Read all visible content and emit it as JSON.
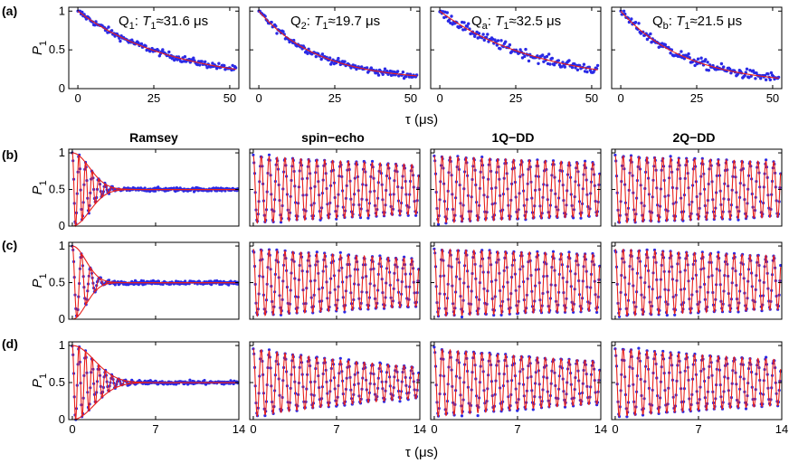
{
  "figure": {
    "row_labels": [
      "(a)",
      "(b)",
      "(c)",
      "(d)"
    ],
    "column_titles": [
      "Ramsey",
      "spin−echo",
      "1Q−DD",
      "2Q−DD"
    ],
    "ylabel_main": "P",
    "ylabel_sub": "1",
    "xlabel_top": "τ (μs)",
    "xlabel_bottom": "τ (μs)",
    "colors": {
      "data": "#2a2ae6",
      "fit": "#e8201a",
      "axis": "#000000"
    }
  },
  "chart_data": [
    {
      "type": "scatter",
      "row": "(a)",
      "qubit_main": "Q",
      "qubit_sub": "1",
      "t1_main": "T",
      "t1_sub": "1",
      "t1_value": "≈31.6 μs",
      "T1_us": 31.6,
      "xlim": [
        -3,
        53
      ],
      "ylim": [
        0,
        1.05
      ],
      "xticks": [
        0,
        25,
        50
      ],
      "xtick_labels": [
        "0",
        "25",
        "50"
      ],
      "yticks": [
        0,
        0.5,
        1
      ],
      "ytick_labels": [
        "0",
        "0.5",
        "1"
      ],
      "series": [
        {
          "fit": {
            "model": "exp",
            "amp": 0.93,
            "tau": 31.6,
            "offset": 0.07
          }
        }
      ]
    },
    {
      "type": "scatter",
      "row": "(a)",
      "qubit_main": "Q",
      "qubit_sub": "2",
      "t1_main": "T",
      "t1_sub": "1",
      "t1_value": "≈19.7 μs",
      "T1_us": 19.7,
      "xlim": [
        -3,
        53
      ],
      "ylim": [
        0,
        1.05
      ],
      "xticks": [
        0,
        25,
        50
      ],
      "xtick_labels": [
        "0",
        "25",
        "50"
      ],
      "yticks": [
        0,
        0.5,
        1
      ],
      "ytick_labels": [
        "",
        "",
        ""
      ],
      "series": [
        {
          "fit": {
            "model": "exp",
            "amp": 0.9,
            "tau": 19.7,
            "offset": 0.1
          }
        }
      ]
    },
    {
      "type": "scatter",
      "row": "(a)",
      "qubit_main": "Q",
      "qubit_sub": "a",
      "t1_main": "T",
      "t1_sub": "1",
      "t1_value": "≈32.5 μs",
      "T1_us": 32.5,
      "xlim": [
        -3,
        53
      ],
      "ylim": [
        0,
        1.05
      ],
      "xticks": [
        0,
        25,
        50
      ],
      "xtick_labels": [
        "0",
        "25",
        "50"
      ],
      "yticks": [
        0,
        0.5,
        1
      ],
      "ytick_labels": [
        "",
        "",
        ""
      ],
      "series": [
        {
          "fit": {
            "model": "exp",
            "amp": 0.95,
            "tau": 32.5,
            "offset": 0.05
          }
        }
      ]
    },
    {
      "type": "scatter",
      "row": "(a)",
      "qubit_main": "Q",
      "qubit_sub": "b",
      "t1_main": "T",
      "t1_sub": "1",
      "t1_value": "≈21.5 μs",
      "T1_us": 21.5,
      "xlim": [
        -3,
        53
      ],
      "ylim": [
        0,
        1.05
      ],
      "xticks": [
        0,
        25,
        50
      ],
      "xtick_labels": [
        "0",
        "25",
        "50"
      ],
      "yticks": [
        0,
        0.5,
        1
      ],
      "ytick_labels": [
        "",
        "",
        ""
      ],
      "series": [
        {
          "fit": {
            "model": "exp",
            "amp": 0.95,
            "tau": 21.5,
            "offset": 0.05
          }
        }
      ]
    },
    {
      "type": "scatter",
      "row": "(b)",
      "column": "Ramsey",
      "xlim": [
        -0.3,
        14
      ],
      "ylim": [
        0,
        1.05
      ],
      "xticks": [
        0,
        7,
        14
      ],
      "yticks": [
        0,
        0.5,
        1
      ],
      "series": [
        {
          "fit": {
            "model": "damped_cos",
            "freq_MHz": 1.8,
            "decay_us": 2.0,
            "gaussian": true,
            "offset": 0.5,
            "amp": 0.5
          }
        }
      ]
    },
    {
      "type": "scatter",
      "row": "(b)",
      "column": "spin−echo",
      "xlim": [
        -0.3,
        14
      ],
      "ylim": [
        0,
        1.05
      ],
      "xticks": [
        0,
        7,
        14
      ],
      "yticks": [
        0,
        0.5,
        1
      ],
      "series": [
        {
          "fit": {
            "model": "damped_cos",
            "freq_MHz": 1.5,
            "decay_us": 45,
            "gaussian": false,
            "offset": 0.5,
            "amp": 0.46
          }
        }
      ]
    },
    {
      "type": "scatter",
      "row": "(b)",
      "column": "1Q−DD",
      "xlim": [
        -0.3,
        14
      ],
      "ylim": [
        0,
        1.05
      ],
      "xticks": [
        0,
        7,
        14
      ],
      "yticks": [
        0,
        0.5,
        1
      ],
      "series": [
        {
          "fit": {
            "model": "damped_cos",
            "freq_MHz": 1.5,
            "decay_us": 60,
            "gaussian": false,
            "offset": 0.5,
            "amp": 0.46
          }
        }
      ]
    },
    {
      "type": "scatter",
      "row": "(b)",
      "column": "2Q−DD",
      "xlim": [
        -0.3,
        14
      ],
      "ylim": [
        0,
        1.05
      ],
      "xticks": [
        0,
        7,
        14
      ],
      "yticks": [
        0,
        0.5,
        1
      ],
      "series": [
        {
          "fit": {
            "model": "damped_cos",
            "freq_MHz": 1.5,
            "decay_us": 70,
            "gaussian": false,
            "offset": 0.5,
            "amp": 0.46
          }
        }
      ]
    },
    {
      "type": "scatter",
      "row": "(c)",
      "column": "Ramsey",
      "xlim": [
        -0.3,
        14
      ],
      "ylim": [
        0,
        1.05
      ],
      "xticks": [
        0,
        7,
        14
      ],
      "yticks": [
        0,
        0.5,
        1
      ],
      "series": [
        {
          "fit": {
            "model": "damped_cos",
            "freq_MHz": 1.3,
            "decay_us": 1.6,
            "gaussian": true,
            "offset": 0.5,
            "amp": 0.5
          }
        }
      ]
    },
    {
      "type": "scatter",
      "row": "(c)",
      "column": "spin−echo",
      "xlim": [
        -0.3,
        14
      ],
      "ylim": [
        0,
        1.05
      ],
      "xticks": [
        0,
        7,
        14
      ],
      "yticks": [
        0,
        0.5,
        1
      ],
      "series": [
        {
          "fit": {
            "model": "damped_cos",
            "freq_MHz": 1.5,
            "decay_us": 40,
            "gaussian": false,
            "offset": 0.5,
            "amp": 0.46
          }
        }
      ]
    },
    {
      "type": "scatter",
      "row": "(c)",
      "column": "1Q−DD",
      "xlim": [
        -0.3,
        14
      ],
      "ylim": [
        0,
        1.05
      ],
      "xticks": [
        0,
        7,
        14
      ],
      "yticks": [
        0,
        0.5,
        1
      ],
      "series": [
        {
          "fit": {
            "model": "damped_cos",
            "freq_MHz": 1.5,
            "decay_us": 80,
            "gaussian": false,
            "offset": 0.5,
            "amp": 0.46
          }
        }
      ]
    },
    {
      "type": "scatter",
      "row": "(c)",
      "column": "2Q−DD",
      "xlim": [
        -0.3,
        14
      ],
      "ylim": [
        0,
        1.05
      ],
      "xticks": [
        0,
        7,
        14
      ],
      "yticks": [
        0,
        0.5,
        1
      ],
      "series": [
        {
          "fit": {
            "model": "damped_cos",
            "freq_MHz": 1.5,
            "decay_us": 60,
            "gaussian": false,
            "offset": 0.5,
            "amp": 0.46
          }
        }
      ]
    },
    {
      "type": "scatter",
      "row": "(d)",
      "column": "Ramsey",
      "xlim": [
        -0.3,
        14
      ],
      "ylim": [
        0,
        1.05
      ],
      "xticks": [
        0,
        7,
        14
      ],
      "yticks": [
        0,
        0.5,
        1
      ],
      "series": [
        {
          "fit": {
            "model": "damped_cos",
            "freq_MHz": 1.8,
            "decay_us": 2.6,
            "gaussian": true,
            "offset": 0.5,
            "amp": 0.5
          }
        }
      ]
    },
    {
      "type": "scatter",
      "row": "(d)",
      "column": "spin−echo",
      "xlim": [
        -0.3,
        14
      ],
      "ylim": [
        0,
        1.05
      ],
      "xticks": [
        0,
        7,
        14
      ],
      "yticks": [
        0,
        0.5,
        1
      ],
      "series": [
        {
          "fit": {
            "model": "damped_cos",
            "freq_MHz": 1.5,
            "decay_us": 18,
            "gaussian": false,
            "offset": 0.5,
            "amp": 0.46
          }
        }
      ]
    },
    {
      "type": "scatter",
      "row": "(d)",
      "column": "1Q−DD",
      "xlim": [
        -0.3,
        14
      ],
      "ylim": [
        0,
        1.05
      ],
      "xticks": [
        0,
        7,
        14
      ],
      "yticks": [
        0,
        0.5,
        1
      ],
      "series": [
        {
          "fit": {
            "model": "damped_cos",
            "freq_MHz": 1.5,
            "decay_us": 30,
            "gaussian": false,
            "offset": 0.5,
            "amp": 0.46
          }
        }
      ]
    },
    {
      "type": "scatter",
      "row": "(d)",
      "column": "2Q−DD",
      "xlim": [
        -0.3,
        14
      ],
      "ylim": [
        0,
        1.05
      ],
      "xticks": [
        0,
        7,
        14
      ],
      "yticks": [
        0,
        0.5,
        1
      ],
      "series": [
        {
          "fit": {
            "model": "damped_cos",
            "freq_MHz": 1.5,
            "decay_us": 35,
            "gaussian": false,
            "offset": 0.5,
            "amp": 0.46
          }
        }
      ]
    }
  ]
}
